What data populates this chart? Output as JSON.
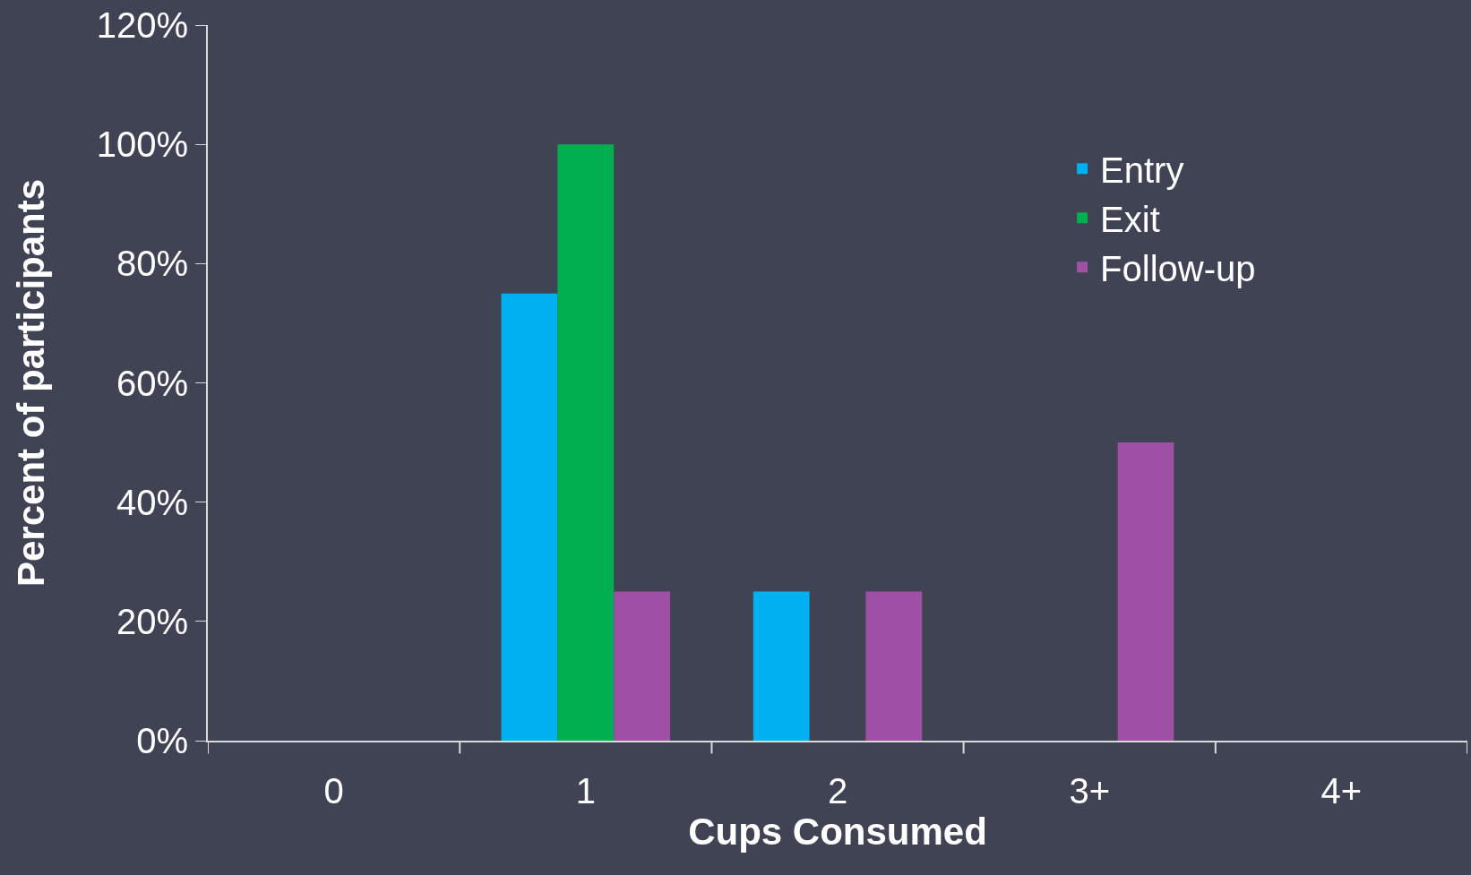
{
  "chart_data": {
    "type": "bar",
    "xlabel": "Cups Consumed",
    "ylabel": "Percent of participants",
    "categories": [
      "0",
      "1",
      "2",
      "3+",
      "4+"
    ],
    "series": [
      {
        "name": "Entry",
        "color": "#00b0f0",
        "values": [
          0,
          75,
          25,
          0,
          0
        ]
      },
      {
        "name": "Exit",
        "color": "#00b050",
        "values": [
          0,
          100,
          0,
          0,
          0
        ]
      },
      {
        "name": "Follow-up",
        "color": "#9f4fa6",
        "values": [
          0,
          25,
          25,
          50,
          0
        ]
      }
    ],
    "ylim": [
      0,
      120
    ],
    "yticks": [
      {
        "value": 0,
        "label": "0%"
      },
      {
        "value": 20,
        "label": "20%"
      },
      {
        "value": 40,
        "label": "40%"
      },
      {
        "value": 60,
        "label": "60%"
      },
      {
        "value": 80,
        "label": "80%"
      },
      {
        "value": 100,
        "label": "100%"
      },
      {
        "value": 120,
        "label": "120%"
      }
    ],
    "legend": "top right"
  }
}
